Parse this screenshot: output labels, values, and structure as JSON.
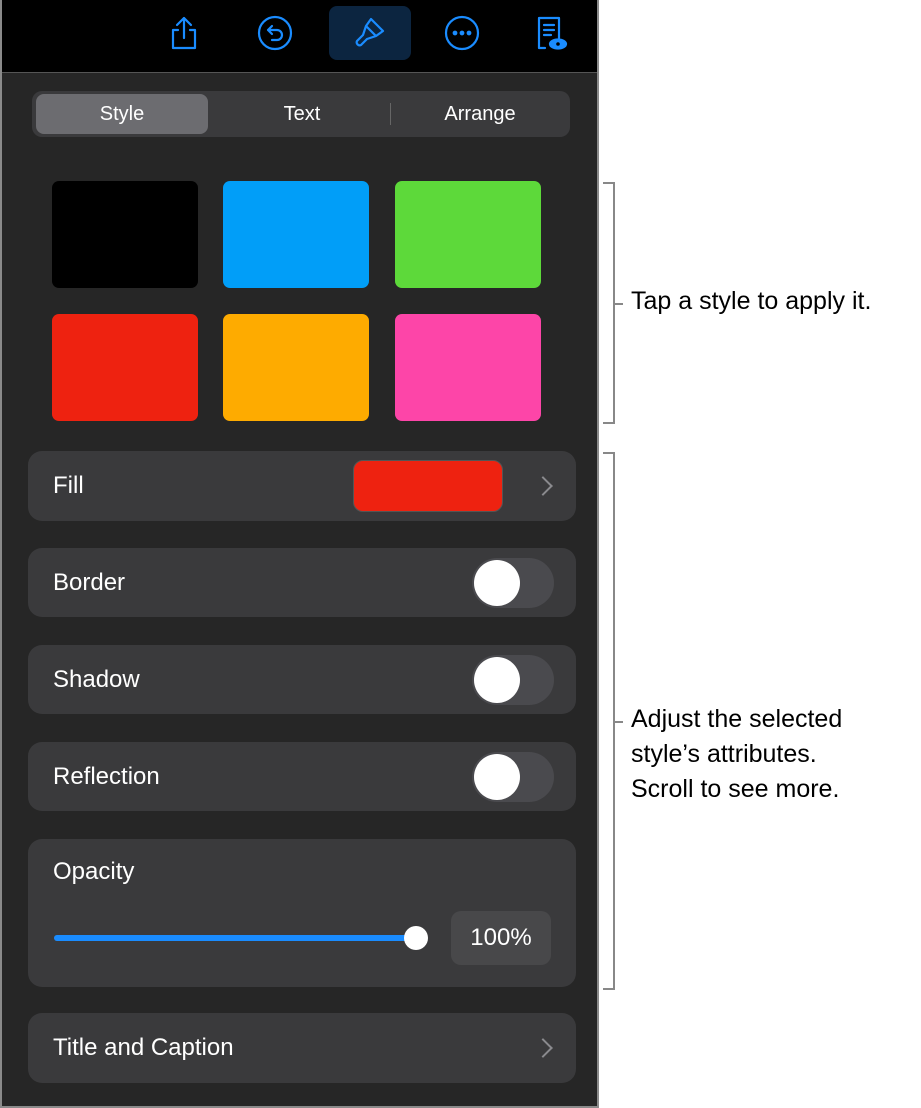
{
  "toolbar": {
    "items": [
      {
        "icon": "share-icon"
      },
      {
        "icon": "undo-icon"
      },
      {
        "icon": "paintbrush-icon",
        "active": true
      },
      {
        "icon": "more-icon"
      },
      {
        "icon": "document-view-icon"
      }
    ],
    "accent": "#1a8cff"
  },
  "tabs": [
    {
      "label": "Style",
      "selected": true
    },
    {
      "label": "Text"
    },
    {
      "label": "Arrange"
    }
  ],
  "swatches": [
    "#000000",
    "#019ef8",
    "#5dd93a",
    "#ee2210",
    "#feab00",
    "#fd45a8"
  ],
  "fill": {
    "label": "Fill",
    "color": "#ee2210"
  },
  "border": {
    "label": "Border",
    "on": false
  },
  "shadow": {
    "label": "Shadow",
    "on": false
  },
  "reflection": {
    "label": "Reflection",
    "on": false
  },
  "opacity": {
    "label": "Opacity",
    "value": "100%",
    "fraction": 1.0
  },
  "title_caption": {
    "label": "Title and Caption"
  },
  "annotations": {
    "styles": "Tap a style to apply it.",
    "attributes": [
      "Adjust the selected",
      "style’s attributes.",
      "Scroll to see more."
    ]
  }
}
